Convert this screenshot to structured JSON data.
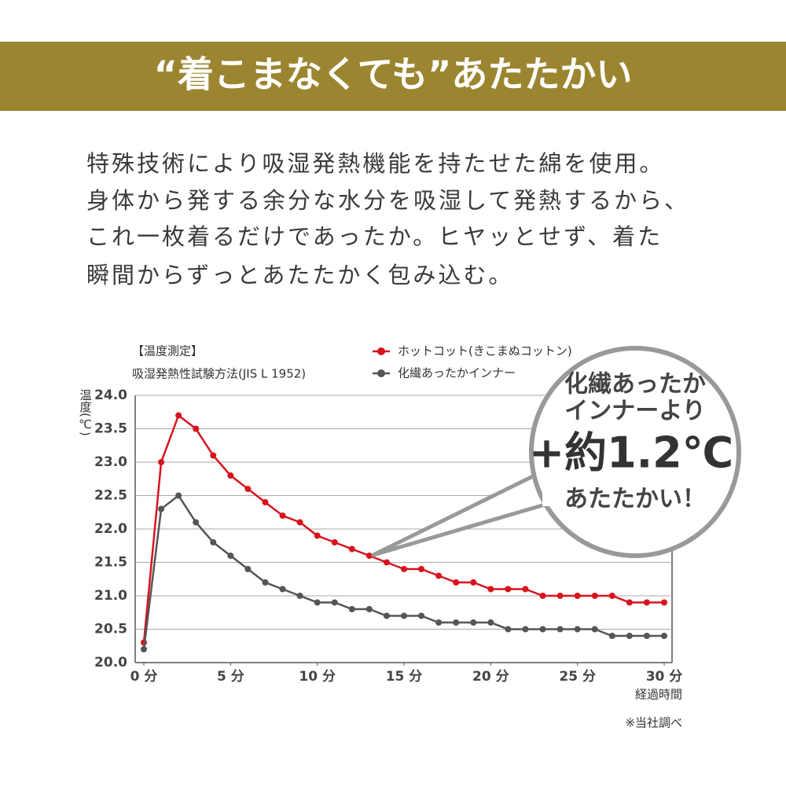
{
  "header": {
    "title": "“着こまなくても”あたたかい"
  },
  "body": {
    "lines": [
      "特殊技術により吸湿発熱機能を持たせた綿を使用。",
      "身体から発する余分な水分を吸湿して発熱するから、",
      "これ一枚着るだけであったか。ヒヤッとせず、着た",
      "瞬間からずっとあたたかく包み込む。"
    ]
  },
  "callout": {
    "lines": [
      "化繊あったか",
      "インナーより",
      "+約1.2℃",
      "あたたかい！"
    ]
  },
  "chart_data": {
    "type": "line",
    "notes": [
      "【温度測定】",
      "吸湿発熱性試験方法(JIS L 1952)"
    ],
    "y_label": "温度(℃)",
    "x_label": "経過時間",
    "source": "※当社調べ",
    "x": [
      0,
      1,
      2,
      3,
      4,
      5,
      6,
      7,
      8,
      9,
      10,
      11,
      12,
      13,
      14,
      15,
      16,
      17,
      18,
      19,
      20,
      21,
      22,
      23,
      24,
      25,
      26,
      27,
      28,
      29,
      30
    ],
    "series": [
      {
        "name": "ホットコット(きこまぬコットン)",
        "color": "#d7141e",
        "values": [
          20.3,
          23.0,
          23.7,
          23.5,
          23.1,
          22.8,
          22.6,
          22.4,
          22.2,
          22.1,
          21.9,
          21.8,
          21.7,
          21.6,
          21.5,
          21.4,
          21.4,
          21.3,
          21.2,
          21.2,
          21.1,
          21.1,
          21.1,
          21.0,
          21.0,
          21.0,
          21.0,
          21.0,
          20.9,
          20.9,
          20.9
        ]
      },
      {
        "name": "化繊あったかインナー",
        "color": "#555555",
        "values": [
          20.2,
          22.3,
          22.5,
          22.1,
          21.8,
          21.6,
          21.4,
          21.2,
          21.1,
          21.0,
          20.9,
          20.9,
          20.8,
          20.8,
          20.7,
          20.7,
          20.7,
          20.6,
          20.6,
          20.6,
          20.6,
          20.5,
          20.5,
          20.5,
          20.5,
          20.5,
          20.5,
          20.4,
          20.4,
          20.4,
          20.4
        ]
      }
    ],
    "xlim": [
      0,
      30
    ],
    "xticks": [
      {
        "value": 0,
        "label": "0 分"
      },
      {
        "value": 5,
        "label": "5 分"
      },
      {
        "value": 10,
        "label": "10 分"
      },
      {
        "value": 15,
        "label": "15 分"
      },
      {
        "value": 20,
        "label": "20 分"
      },
      {
        "value": 25,
        "label": "25 分"
      },
      {
        "value": 30,
        "label": "30 分"
      }
    ],
    "ylim": [
      20,
      24
    ],
    "yticks": [
      {
        "value": 20,
        "label": "20.0"
      },
      20.5,
      {
        "value": 21,
        "label": "21.0"
      },
      21.5,
      {
        "value": 22,
        "label": "22.0"
      },
      22.5,
      {
        "value": 23,
        "label": "23.0"
      },
      23.5,
      {
        "value": 24,
        "label": "24.0"
      }
    ],
    "grid": true
  }
}
